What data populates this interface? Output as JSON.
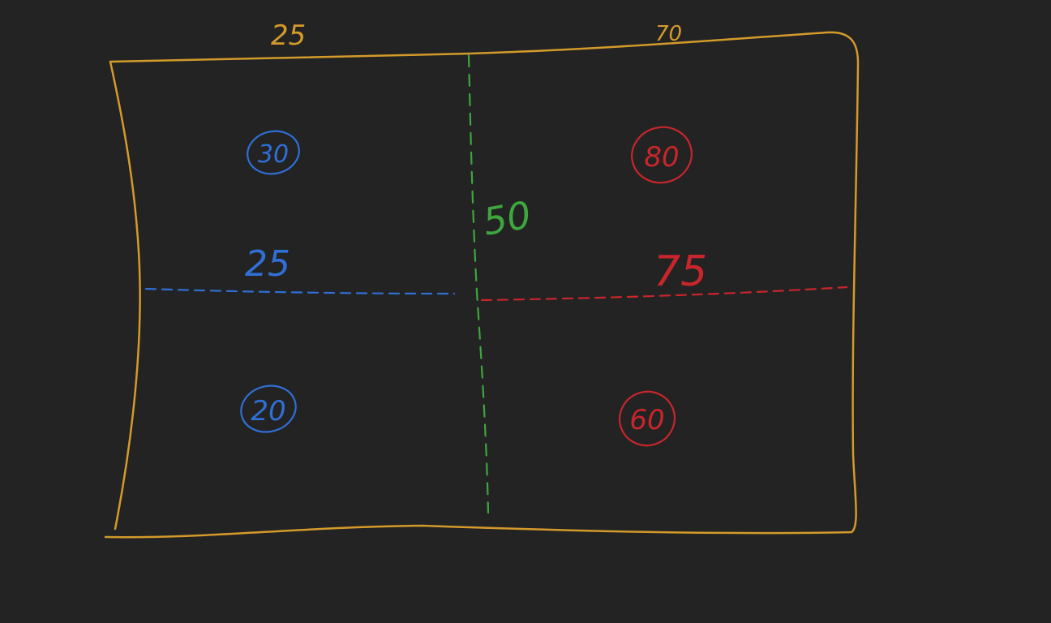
{
  "colors": {
    "background": "#232323",
    "frame": "#d49a2a",
    "divider_vertical": "#3ea63e",
    "divider_left": "#2f6fd6",
    "divider_right": "#c8262b",
    "circle_left": "#2f6fd6",
    "circle_right": "#c8262b"
  },
  "frame": {
    "top_left_label": "25",
    "top_right_label": "70"
  },
  "vertical_divider": {
    "label": "50"
  },
  "left_divider": {
    "label": "25"
  },
  "right_divider": {
    "label": "75"
  },
  "quadrants": {
    "top_left": "30",
    "top_right": "80",
    "bottom_left": "20",
    "bottom_right": "60"
  }
}
